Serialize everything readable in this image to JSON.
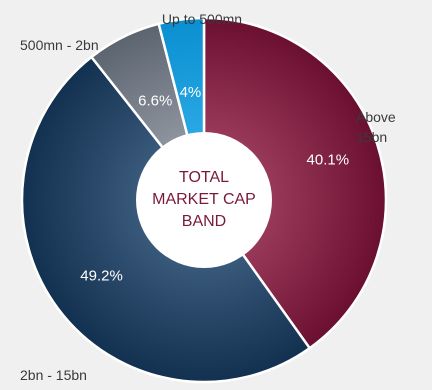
{
  "chart_data": {
    "type": "pie",
    "variant": "donut",
    "center_label_lines": [
      "TOTAL",
      "MARKET CAP",
      "BAND"
    ],
    "slices": [
      {
        "category": "Above 15bn",
        "category_lines": [
          "Above",
          "15bn"
        ],
        "value": 40.1,
        "label": "40.1%",
        "color": "#6b0f30",
        "color_light": "#9a3a5a"
      },
      {
        "category": "2bn - 15bn",
        "category_lines": [
          "2bn - 15bn"
        ],
        "value": 49.2,
        "label": "49.2%",
        "color": "#12304f",
        "color_light": "#3a5a7c"
      },
      {
        "category": "500mn - 2bn",
        "category_lines": [
          "500mn - 2bn"
        ],
        "value": 6.6,
        "label": "6.6%",
        "color": "#5c6470",
        "color_light": "#8e959f"
      },
      {
        "category": "Up to 500mn",
        "category_lines": [
          "Up to 500mn"
        ],
        "value": 4,
        "label": "4%",
        "color": "#0a8fd0",
        "color_light": "#2aa8e4"
      }
    ]
  }
}
